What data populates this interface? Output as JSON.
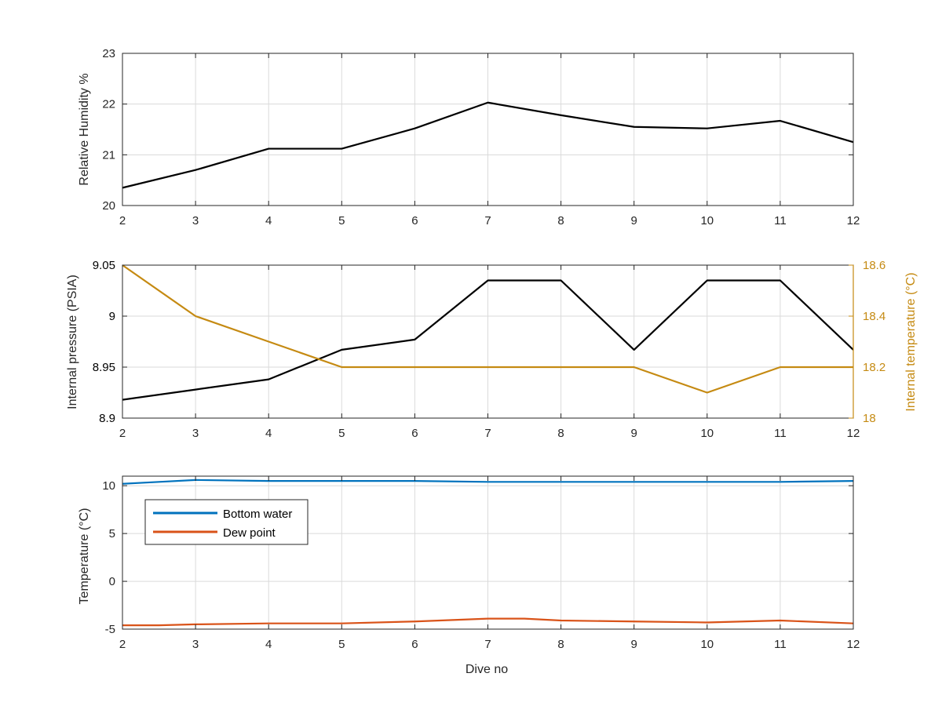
{
  "colors": {
    "black_series": "#000000",
    "temperature_right": "#C58A12",
    "bottom_water": "#0072BD",
    "dew_point": "#D95319",
    "grid": "#DADADA",
    "axis": "#262626"
  },
  "chart_data": [
    {
      "type": "line",
      "xlabel": "",
      "ylabel": "Relative Humidity %",
      "xlim": [
        2,
        12
      ],
      "ylim": [
        20,
        23
      ],
      "xticks": [
        2,
        3,
        4,
        5,
        6,
        7,
        8,
        9,
        10,
        11,
        12
      ],
      "xtick_labels": [
        "2",
        "3",
        "4",
        "5",
        "6",
        "7",
        "8",
        "9",
        "10",
        "11",
        "12"
      ],
      "yticks": [
        20,
        21,
        22,
        23
      ],
      "ytick_labels": [
        "20",
        "21",
        "22",
        "23"
      ],
      "grid": true,
      "series": [
        {
          "color": "#000000",
          "x": [
            2,
            3,
            4,
            5,
            6,
            7,
            8,
            9,
            10,
            11,
            12
          ],
          "values": [
            20.35,
            20.7,
            21.12,
            21.12,
            21.52,
            22.03,
            21.78,
            21.55,
            21.52,
            21.67,
            21.25
          ]
        }
      ]
    },
    {
      "type": "line",
      "xlabel": "",
      "ylabel": "Internal pressure (PSIA)",
      "ylabel_right": "Internal temperature (°C)",
      "xlim": [
        2,
        12
      ],
      "ylim": [
        8.9,
        9.05
      ],
      "ylim_right": [
        18,
        18.6
      ],
      "xticks": [
        2,
        3,
        4,
        5,
        6,
        7,
        8,
        9,
        10,
        11,
        12
      ],
      "xtick_labels": [
        "2",
        "3",
        "4",
        "5",
        "6",
        "7",
        "8",
        "9",
        "10",
        "11",
        "12"
      ],
      "yticks": [
        8.9,
        8.95,
        9,
        9.05
      ],
      "ytick_labels": [
        "8.9",
        "8.95",
        "9",
        "9.05"
      ],
      "yticks_right": [
        18,
        18.2,
        18.4,
        18.6
      ],
      "ytick_labels_right": [
        "18",
        "18.2",
        "18.4",
        "18.6"
      ],
      "grid": true,
      "series": [
        {
          "axis": "left",
          "color": "#000000",
          "x": [
            2,
            3,
            4,
            5,
            6,
            7,
            8,
            9,
            10,
            11,
            12
          ],
          "values": [
            8.918,
            8.928,
            8.938,
            8.967,
            8.977,
            9.035,
            9.035,
            8.967,
            9.035,
            9.035,
            8.967
          ]
        },
        {
          "axis": "right",
          "color": "#C58A12",
          "x": [
            2,
            3,
            4,
            5,
            6,
            7,
            8,
            9,
            10,
            11,
            12
          ],
          "values": [
            18.6,
            18.4,
            18.3,
            18.2,
            18.2,
            18.2,
            18.2,
            18.2,
            18.1,
            18.2,
            18.2
          ]
        }
      ]
    },
    {
      "type": "line",
      "xlabel": "Dive no",
      "ylabel": "Temperature (°C)",
      "xlim": [
        2,
        12
      ],
      "ylim": [
        -5,
        11
      ],
      "xticks": [
        2,
        3,
        4,
        5,
        6,
        7,
        8,
        9,
        10,
        11,
        12
      ],
      "xtick_labels": [
        "2",
        "3",
        "4",
        "5",
        "6",
        "7",
        "8",
        "9",
        "10",
        "11",
        "12"
      ],
      "yticks": [
        -5,
        0,
        5,
        10
      ],
      "ytick_labels": [
        "-5",
        "0",
        "5",
        "10"
      ],
      "grid": true,
      "legend_position": "top-left",
      "series": [
        {
          "name": "Bottom water",
          "color": "#0072BD",
          "x": [
            2,
            2.5,
            3,
            4,
            5,
            6,
            7,
            8,
            9,
            10,
            11,
            12
          ],
          "values": [
            10.2,
            10.4,
            10.6,
            10.5,
            10.5,
            10.5,
            10.4,
            10.4,
            10.4,
            10.4,
            10.4,
            10.5
          ]
        },
        {
          "name": "Dew point",
          "color": "#D95319",
          "x": [
            2,
            2.5,
            3,
            4,
            5,
            6,
            7,
            7.5,
            8,
            9,
            10,
            11,
            12
          ],
          "values": [
            -4.6,
            -4.6,
            -4.5,
            -4.4,
            -4.4,
            -4.2,
            -3.9,
            -3.9,
            -4.1,
            -4.2,
            -4.3,
            -4.1,
            -4.4
          ]
        }
      ]
    }
  ]
}
